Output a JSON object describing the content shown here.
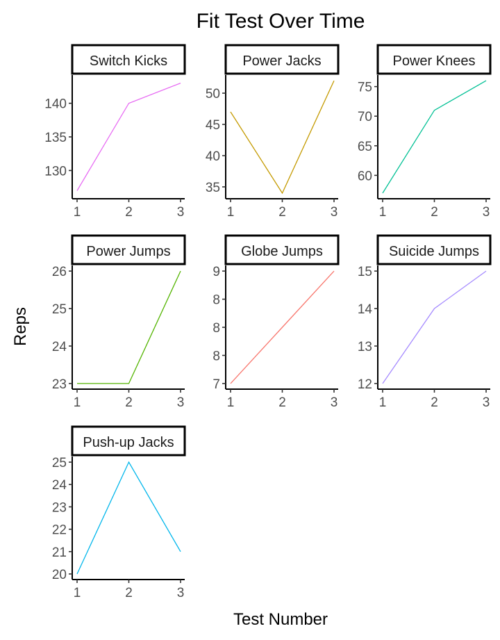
{
  "chart_data": {
    "type": "line",
    "title": "Fit Test Over Time",
    "xlabel": "Test Number",
    "ylabel": "Reps",
    "x": [
      1,
      2,
      3
    ],
    "panels": [
      {
        "name": "Switch Kicks",
        "color": "#e76bf3",
        "values": [
          127,
          140,
          143
        ],
        "yticks": [
          130,
          135,
          140
        ],
        "ylim": [
          125.8,
          144.2
        ]
      },
      {
        "name": "Power Jacks",
        "color": "#c49a00",
        "values": [
          47,
          34,
          52
        ],
        "yticks": [
          35,
          40,
          45,
          50
        ],
        "ylim": [
          33.1,
          52.9
        ]
      },
      {
        "name": "Power Knees",
        "color": "#00c094",
        "values": [
          57,
          71,
          76
        ],
        "yticks": [
          60,
          65,
          70,
          75
        ],
        "ylim": [
          56.05,
          76.95
        ]
      },
      {
        "name": "Power Jumps",
        "color": "#53b400",
        "values": [
          23,
          23,
          26
        ],
        "yticks": [
          23,
          24,
          25,
          26
        ],
        "ylim": [
          22.85,
          26.15
        ]
      },
      {
        "name": "Globe Jumps",
        "color": "#f8766d",
        "values": [
          7,
          8,
          9
        ],
        "ytick_values": [
          7,
          7.5,
          8,
          8.5,
          9
        ],
        "ytick_labels": [
          "7",
          "8",
          "8",
          "8",
          "9"
        ],
        "ylim": [
          6.9,
          9.1
        ]
      },
      {
        "name": "Suicide Jumps",
        "color": "#a58aff",
        "values": [
          12,
          14,
          15
        ],
        "yticks": [
          12,
          13,
          14,
          15
        ],
        "ylim": [
          11.85,
          15.15
        ]
      },
      {
        "name": "Push-up Jacks",
        "color": "#00b6eb",
        "values": [
          20,
          25,
          21
        ],
        "yticks": [
          20,
          21,
          22,
          23,
          24,
          25
        ],
        "ylim": [
          19.75,
          25.25
        ]
      }
    ]
  }
}
